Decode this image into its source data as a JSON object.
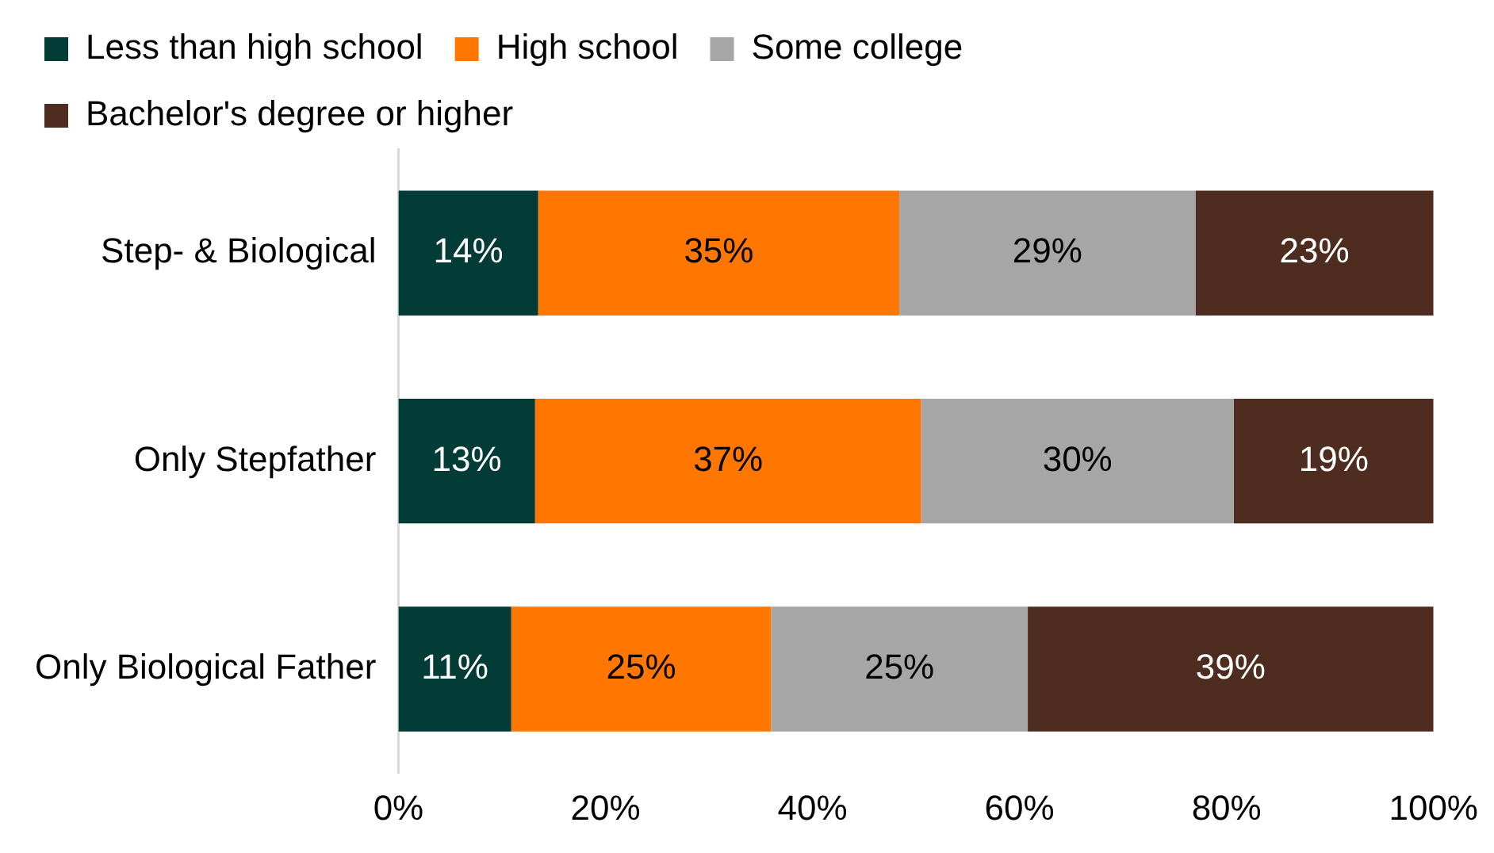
{
  "chart_data": {
    "type": "bar",
    "orientation": "horizontal",
    "stacked": true,
    "categories": [
      "Step- & Biological",
      "Only Stepfather",
      "Only Biological Father"
    ],
    "series": [
      {
        "name": "Less than high school",
        "color": "#033b37",
        "values": [
          13.5,
          13.2,
          10.9
        ],
        "value_labels": [
          "14%",
          "13%",
          "11%"
        ]
      },
      {
        "name": "High school",
        "color": "#ff7700",
        "values": [
          34.9,
          37.3,
          25.1
        ],
        "value_labels": [
          "35%",
          "37%",
          "25%"
        ]
      },
      {
        "name": "Some college",
        "color": "#a6a6a6",
        "values": [
          28.6,
          30.2,
          24.8
        ],
        "value_labels": [
          "29%",
          "30%",
          "25%"
        ]
      },
      {
        "name": "Bachelor's degree or higher",
        "color": "#4f2c20",
        "values": [
          23.0,
          19.3,
          39.2
        ],
        "value_labels": [
          "23%",
          "19%",
          "39%"
        ]
      }
    ],
    "xlim": [
      0,
      100
    ],
    "xticks": [
      {
        "value": 0,
        "label": "0%"
      },
      {
        "value": 20,
        "label": "20%"
      },
      {
        "value": 40,
        "label": "40%"
      },
      {
        "value": 60,
        "label": "60%"
      },
      {
        "value": 80,
        "label": "80%"
      },
      {
        "value": 100,
        "label": "100%"
      }
    ],
    "grid": false,
    "legend": "top"
  }
}
